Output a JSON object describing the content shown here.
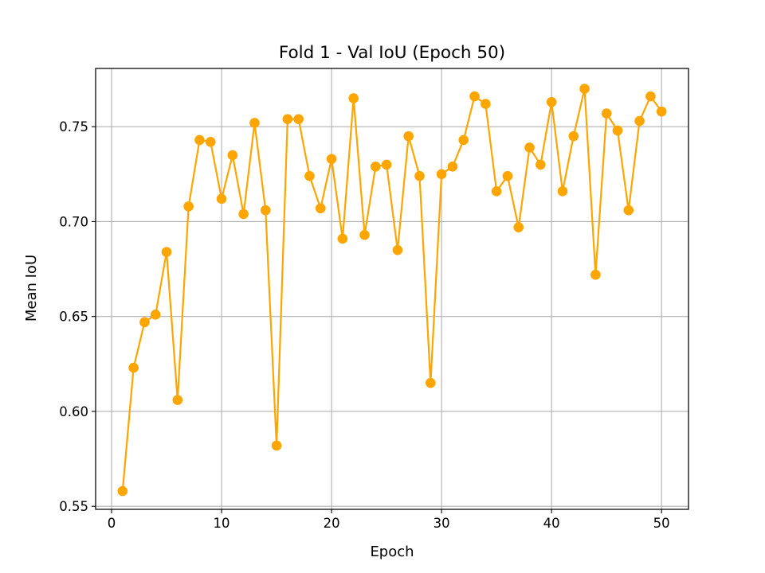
{
  "chart_data": {
    "type": "line",
    "title": "Fold 1 - Val IoU (Epoch 50)",
    "xlabel": "Epoch",
    "ylabel": "Mean IoU",
    "xlim": [
      -1.45,
      52.45
    ],
    "ylim": [
      0.5484,
      0.7807
    ],
    "xticks": [
      0,
      10,
      20,
      30,
      40,
      50
    ],
    "yticks": [
      0.55,
      0.6,
      0.65,
      0.7,
      0.75
    ],
    "ytick_labels": [
      "0.55",
      "0.60",
      "0.65",
      "0.70",
      "0.75"
    ],
    "grid": true,
    "legend": null,
    "color": "#ffa500",
    "series": [
      {
        "x": [
          1,
          2,
          3,
          4,
          5,
          6,
          7,
          8,
          9,
          10,
          11,
          12,
          13,
          14,
          15,
          16,
          17,
          18,
          19,
          20,
          21,
          22,
          23,
          24,
          25,
          26,
          27,
          28,
          29,
          30,
          31,
          32,
          33,
          34,
          35,
          36,
          37,
          38,
          39,
          40,
          41,
          42,
          43,
          44,
          45,
          46,
          47,
          48,
          49,
          50
        ],
        "values": [
          0.558,
          0.623,
          0.647,
          0.651,
          0.684,
          0.606,
          0.708,
          0.743,
          0.742,
          0.712,
          0.735,
          0.704,
          0.752,
          0.706,
          0.582,
          0.754,
          0.754,
          0.724,
          0.707,
          0.733,
          0.691,
          0.765,
          0.693,
          0.729,
          0.73,
          0.685,
          0.745,
          0.724,
          0.615,
          0.725,
          0.729,
          0.743,
          0.766,
          0.762,
          0.716,
          0.724,
          0.697,
          0.739,
          0.73,
          0.763,
          0.716,
          0.745,
          0.77,
          0.672,
          0.757,
          0.748,
          0.706,
          0.753,
          0.766,
          0.758
        ]
      }
    ]
  }
}
